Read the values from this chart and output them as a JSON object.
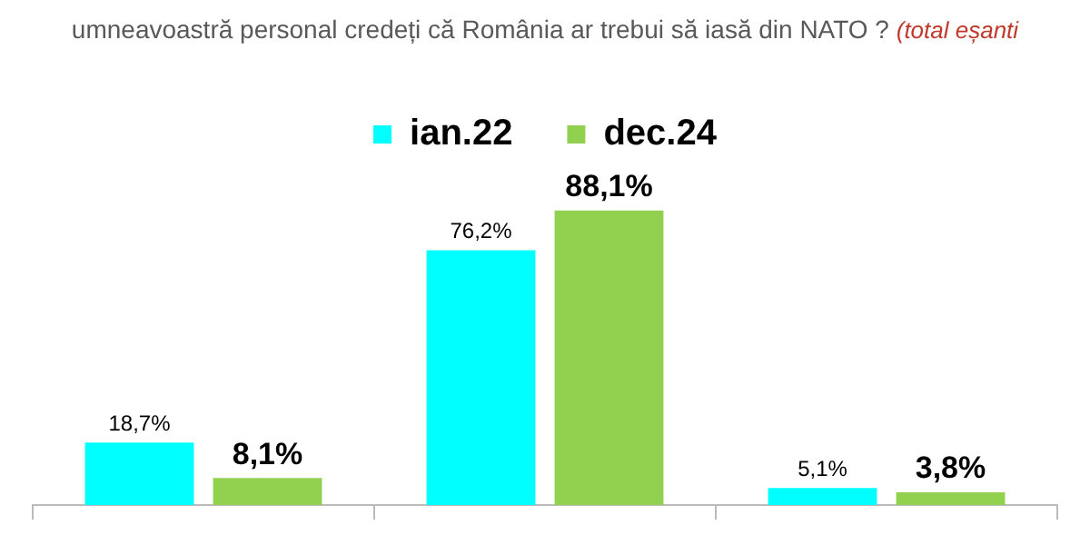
{
  "chart_data": {
    "type": "bar",
    "title": "umneavoastră personal credeți că România ar trebui să iasă din NATO ?",
    "annotations": [
      "(total eșanti"
    ],
    "categories": [
      null,
      null,
      null
    ],
    "legend": "top",
    "series": [
      {
        "name": "ian.22",
        "color": "#00ffff",
        "values": [
          18.7,
          76.2,
          5.1
        ],
        "value_labels": [
          "18,7%",
          "76,2%",
          "5,1%"
        ]
      },
      {
        "name": "dec.24",
        "color": "#92d050",
        "values": [
          8.1,
          88.1,
          3.8
        ],
        "value_labels": [
          "8,1%",
          "88,1%",
          "3,8%"
        ]
      }
    ]
  }
}
